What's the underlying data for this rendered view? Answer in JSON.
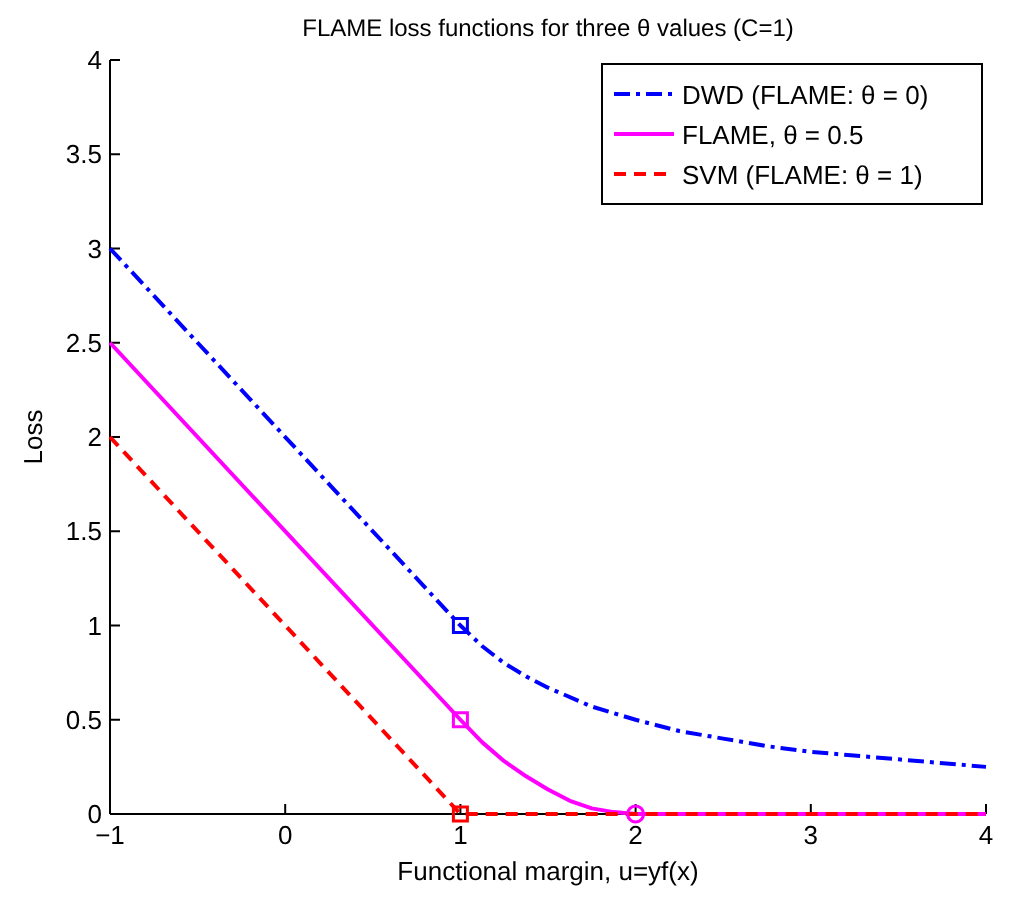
{
  "chart_data": {
    "type": "line",
    "title": "FLAME loss functions for three θ values (C=1)",
    "xlabel": "Functional margin, u=yf(x)",
    "ylabel": "Loss",
    "xlim": [
      -1,
      4
    ],
    "ylim": [
      0,
      4
    ],
    "xticks": [
      -1,
      0,
      1,
      2,
      3,
      4
    ],
    "yticks": [
      0,
      0.5,
      1,
      1.5,
      2,
      2.5,
      3,
      3.5,
      4
    ],
    "grid": false,
    "legend": "top right",
    "series": [
      {
        "name": "DWD (FLAME: θ = 0)",
        "color": "#0000ff",
        "line_style": "dotted",
        "x": [
          -1,
          1,
          1.125,
          1.25,
          1.375,
          1.5,
          1.75,
          2,
          2.25,
          2.5,
          2.75,
          3,
          3.5,
          4
        ],
        "values": [
          3,
          1,
          0.89,
          0.8,
          0.73,
          0.67,
          0.57,
          0.5,
          0.44,
          0.4,
          0.36,
          0.33,
          0.29,
          0.25
        ]
      },
      {
        "name": "FLAME, θ = 0.5",
        "color": "#ff00ff",
        "line_style": "solid",
        "x": [
          -1,
          1,
          1.125,
          1.25,
          1.375,
          1.5,
          1.625,
          1.75,
          1.875,
          2,
          4
        ],
        "values": [
          2.5,
          0.5,
          0.38,
          0.28,
          0.2,
          0.13,
          0.07,
          0.03,
          0.01,
          0,
          0
        ]
      },
      {
        "name": "SVM (FLAME: θ = 1)",
        "color": "#ff0000",
        "line_style": "dashed",
        "x": [
          -1,
          1,
          2,
          4
        ],
        "values": [
          2,
          0,
          0,
          0
        ]
      },
      {
        "type": "scatter",
        "color": "#0000ff",
        "marker": "square",
        "x": [
          1
        ],
        "values": [
          1
        ]
      },
      {
        "type": "scatter",
        "color": "#ff00ff",
        "marker": "square",
        "x": [
          1
        ],
        "values": [
          0.5
        ]
      },
      {
        "type": "scatter",
        "color": "#ff0000",
        "marker": "square",
        "x": [
          1
        ],
        "values": [
          0
        ]
      },
      {
        "type": "scatter",
        "color": "#ff00ff",
        "marker": "circle",
        "x": [
          2
        ],
        "values": [
          0
        ]
      }
    ]
  }
}
